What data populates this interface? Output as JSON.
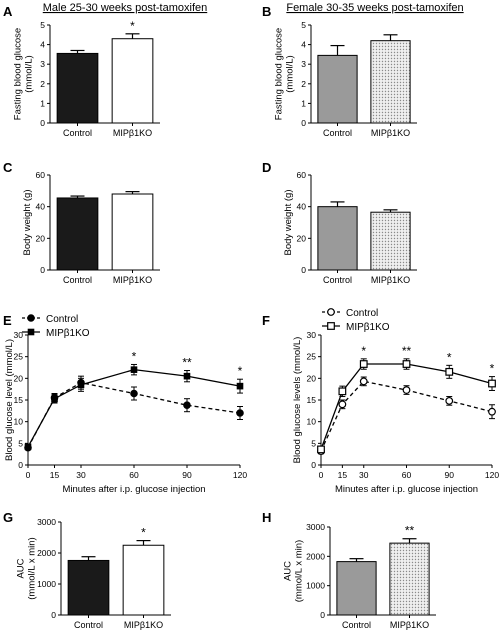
{
  "figure": {
    "panels_order": [
      "A",
      "B",
      "C",
      "D",
      "E",
      "F",
      "G",
      "H"
    ]
  },
  "chart_data": [
    {
      "panel": "A",
      "type": "bar",
      "title": "Male 25-30 weeks post-tamoxifen",
      "ylabel": "Fasting blood glucose (mmol/L)",
      "ylim": [
        0,
        5
      ],
      "yticks": [
        0,
        1,
        2,
        3,
        4,
        5
      ],
      "categories": [
        "Control",
        "MIPβ1KO"
      ],
      "values": [
        3.55,
        4.3
      ],
      "errors": [
        0.15,
        0.25
      ],
      "significance": [
        "",
        "*"
      ],
      "fills": [
        "solid-black",
        "white"
      ]
    },
    {
      "panel": "B",
      "type": "bar",
      "title": "Female 30-35 weeks post-tamoxifen",
      "ylabel": "Fasting blood glucose (mmol/L)",
      "ylim": [
        0,
        5
      ],
      "yticks": [
        0,
        1,
        2,
        3,
        4,
        5
      ],
      "categories": [
        "Control",
        "MIPβ1KO"
      ],
      "values": [
        3.45,
        4.2
      ],
      "errors": [
        0.5,
        0.3
      ],
      "significance": [
        "",
        ""
      ],
      "fills": [
        "grey",
        "dotted"
      ]
    },
    {
      "panel": "C",
      "type": "bar",
      "title": "",
      "ylabel": "Body weight (g)",
      "ylim": [
        0,
        60
      ],
      "yticks": [
        0,
        20,
        40,
        60
      ],
      "categories": [
        "Control",
        "MIPβ1KO"
      ],
      "values": [
        45.5,
        48
      ],
      "errors": [
        1.2,
        1.5
      ],
      "significance": [
        "",
        ""
      ],
      "fills": [
        "solid-black",
        "white"
      ]
    },
    {
      "panel": "D",
      "type": "bar",
      "title": "",
      "ylabel": "Body weight (g)",
      "ylim": [
        0,
        60
      ],
      "yticks": [
        0,
        20,
        40,
        60
      ],
      "categories": [
        "Control",
        "MIPβ1KO"
      ],
      "values": [
        40,
        36.5
      ],
      "errors": [
        3,
        1.5
      ],
      "significance": [
        "",
        ""
      ],
      "fills": [
        "grey",
        "dotted"
      ]
    },
    {
      "panel": "E",
      "type": "line",
      "xlabel": "Minutes after i.p. glucose injection",
      "ylabel": "Blood glucose level (mmol/L)",
      "x": [
        0,
        15,
        30,
        60,
        90,
        120
      ],
      "xlim": [
        0,
        120
      ],
      "xticks": [
        0,
        15,
        30,
        60,
        90,
        120
      ],
      "ylim": [
        0,
        30
      ],
      "yticks": [
        0,
        5,
        10,
        15,
        20,
        25,
        30
      ],
      "legend_position": "top-left",
      "series": [
        {
          "name": "Control",
          "values": [
            4,
            15.5,
            19,
            16.5,
            13.8,
            12
          ],
          "errors": [
            0.5,
            1,
            1.5,
            1.5,
            1.5,
            1.5
          ],
          "marker": "filled-circle",
          "dash": "dashed"
        },
        {
          "name": "MIPβ1KO",
          "values": [
            4.2,
            15.3,
            18.5,
            22,
            20.5,
            18.2
          ],
          "errors": [
            0.5,
            1,
            1.5,
            1.2,
            1.3,
            1.6
          ],
          "marker": "filled-square",
          "dash": "solid"
        }
      ],
      "significance": {
        "60": "*",
        "90": "**",
        "120": "*"
      }
    },
    {
      "panel": "F",
      "type": "line",
      "xlabel": "Minutes after i.p. glucose injection",
      "ylabel": "Blood glucose levels (mmol/L)",
      "x": [
        0,
        15,
        30,
        60,
        90,
        120
      ],
      "xlim": [
        0,
        120
      ],
      "xticks": [
        0,
        15,
        30,
        60,
        90,
        120
      ],
      "ylim": [
        0,
        30
      ],
      "yticks": [
        0,
        5,
        10,
        15,
        20,
        25,
        30
      ],
      "legend_position": "top-left",
      "series": [
        {
          "name": "Control",
          "values": [
            3.2,
            14,
            19.3,
            17.3,
            14.8,
            12.3
          ],
          "errors": [
            0.6,
            1,
            1,
            1,
            1,
            1.6
          ],
          "marker": "open-circle",
          "dash": "dashed"
        },
        {
          "name": "MIPβ1KO",
          "values": [
            3.6,
            17,
            23.3,
            23.3,
            21.5,
            18.8
          ],
          "errors": [
            0.6,
            1.2,
            1.2,
            1.2,
            1.5,
            1.6
          ],
          "marker": "open-square",
          "dash": "solid"
        }
      ],
      "significance": {
        "30": "*",
        "60": "**",
        "90": "*",
        "120": "*"
      }
    },
    {
      "panel": "G",
      "type": "bar",
      "title": "",
      "ylabel": "AUC (mmol/L x min)",
      "ylim": [
        0,
        3000
      ],
      "yticks": [
        0,
        1000,
        2000,
        3000
      ],
      "categories": [
        "Control",
        "MIPβ1KO"
      ],
      "values": [
        1760,
        2250
      ],
      "errors": [
        120,
        150
      ],
      "significance": [
        "",
        "*"
      ],
      "fills": [
        "solid-black",
        "white"
      ]
    },
    {
      "panel": "H",
      "type": "bar",
      "title": "",
      "ylabel": "AUC (mmol/L x min)",
      "ylim": [
        0,
        3000
      ],
      "yticks": [
        0,
        1000,
        2000,
        3000
      ],
      "categories": [
        "Control",
        "MIPβ1KO"
      ],
      "values": [
        1820,
        2450
      ],
      "errors": [
        100,
        150
      ],
      "significance": [
        "",
        "**"
      ],
      "fills": [
        "grey",
        "dotted"
      ]
    }
  ],
  "colors": {
    "black_bar": "#1a1a1a",
    "grey_bar": "#9a9a9a",
    "dotted_bg": "#eeeeee",
    "dot": "#888888",
    "axis": "#000000"
  }
}
